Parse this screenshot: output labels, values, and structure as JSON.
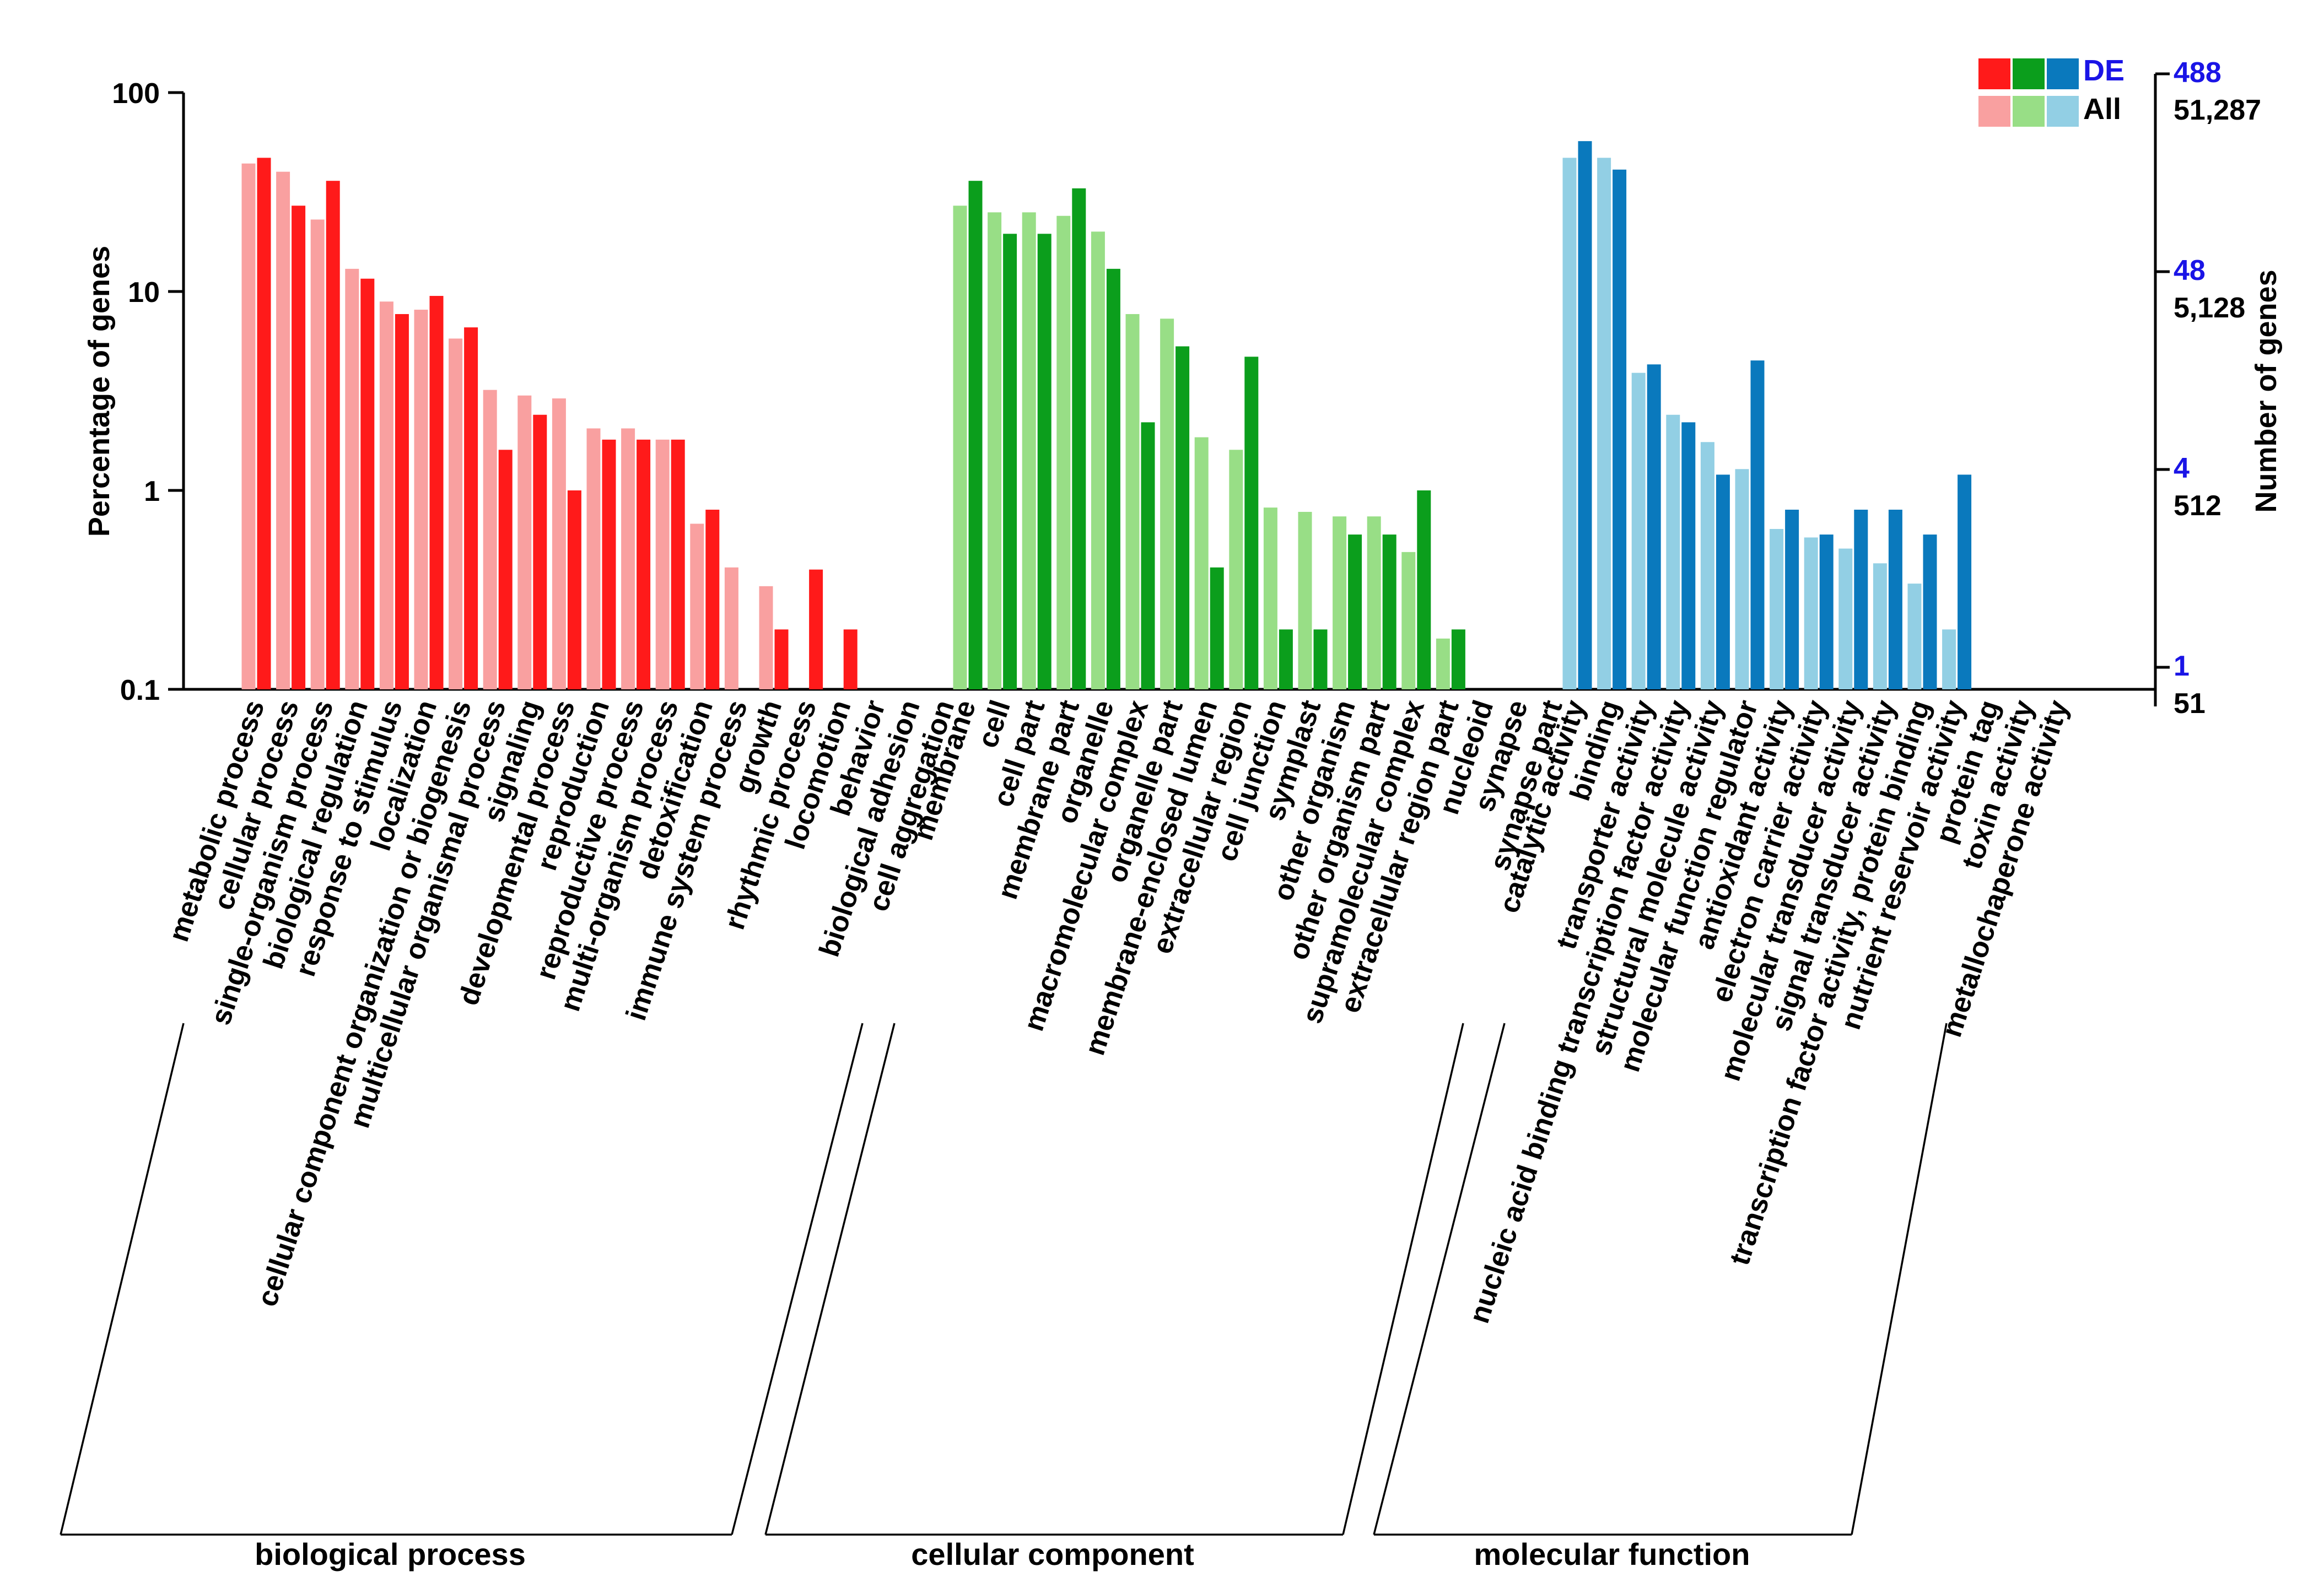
{
  "chart_data": {
    "type": "bar",
    "title": "",
    "ylabel": "Percentage of genes",
    "y2label": "Number of genes",
    "yscale": "log",
    "ylim": [
      0.1,
      100
    ],
    "yticks": [
      "100",
      "10",
      "1",
      "0.1"
    ],
    "right_axis": {
      "de_ticks": [
        "488",
        "48",
        "4",
        "1"
      ],
      "all_ticks": [
        "51,287",
        "5,128",
        "512",
        "51"
      ]
    },
    "legend": {
      "position": "top-right",
      "de_label": "DE",
      "all_label": "All"
    },
    "series": [
      {
        "name": "All"
      },
      {
        "name": "DE"
      }
    ],
    "groups": [
      {
        "name": "biological process",
        "de_color": "#ff1a1a",
        "all_color": "#f9a0a0",
        "categories": [
          {
            "label": "metabolic process",
            "all": 44,
            "de": 47
          },
          {
            "label": "cellular process",
            "all": 40,
            "de": 27
          },
          {
            "label": "single-organism process",
            "all": 23,
            "de": 36
          },
          {
            "label": "biological regulation",
            "all": 13,
            "de": 11.6
          },
          {
            "label": "response to stimulus",
            "all": 8.9,
            "de": 7.7
          },
          {
            "label": "localization",
            "all": 8.1,
            "de": 9.5
          },
          {
            "label": "cellular component organization or biogenesis",
            "all": 5.8,
            "de": 6.6
          },
          {
            "label": "multicellular organismal process",
            "all": 3.2,
            "de": 1.6
          },
          {
            "label": "signaling",
            "all": 3.0,
            "de": 2.4
          },
          {
            "label": "developmental process",
            "all": 2.9,
            "de": 1.0
          },
          {
            "label": "reproduction",
            "all": 2.05,
            "de": 1.8
          },
          {
            "label": "reproductive process",
            "all": 2.05,
            "de": 1.8
          },
          {
            "label": "multi-organism process",
            "all": 1.8,
            "de": 1.8
          },
          {
            "label": "detoxification",
            "all": 0.68,
            "de": 0.8
          },
          {
            "label": "immune system process",
            "all": 0.41,
            "de": null
          },
          {
            "label": "growth",
            "all": 0.33,
            "de": 0.2
          },
          {
            "label": "rhythmic process",
            "all": null,
            "de": 0.4
          },
          {
            "label": "locomotion",
            "all": null,
            "de": 0.2
          },
          {
            "label": "behavior",
            "all": null,
            "de": null
          },
          {
            "label": "biological adhesion",
            "all": null,
            "de": null
          },
          {
            "label": "cell aggregation",
            "all": null,
            "de": null
          }
        ]
      },
      {
        "name": "cellular component",
        "de_color": "#0b9e1c",
        "all_color": "#98de86",
        "categories": [
          {
            "label": "membrane",
            "all": 27,
            "de": 36
          },
          {
            "label": "cell",
            "all": 25,
            "de": 19.5
          },
          {
            "label": "cell part",
            "all": 25,
            "de": 19.5
          },
          {
            "label": "membrane part",
            "all": 24,
            "de": 33
          },
          {
            "label": "organelle",
            "all": 20,
            "de": 13
          },
          {
            "label": "macromolecular complex",
            "all": 7.7,
            "de": 2.2
          },
          {
            "label": "organelle part",
            "all": 7.3,
            "de": 5.3
          },
          {
            "label": "membrane-enclosed lumen",
            "all": 1.85,
            "de": 0.41
          },
          {
            "label": "extracellular region",
            "all": 1.6,
            "de": 4.7
          },
          {
            "label": "cell junction",
            "all": 0.82,
            "de": 0.2
          },
          {
            "label": "symplast",
            "all": 0.78,
            "de": 0.2
          },
          {
            "label": "other organism",
            "all": 0.74,
            "de": 0.6
          },
          {
            "label": "other organism part",
            "all": 0.74,
            "de": 0.6
          },
          {
            "label": "supramolecular complex",
            "all": 0.49,
            "de": 1.0
          },
          {
            "label": "extracellular region part",
            "all": 0.18,
            "de": 0.2
          },
          {
            "label": "nucleoid",
            "all": null,
            "de": null
          },
          {
            "label": "synapse",
            "all": null,
            "de": null
          },
          {
            "label": "synapse part",
            "all": null,
            "de": null
          }
        ]
      },
      {
        "name": "molecular function",
        "de_color": "#0a79bd",
        "all_color": "#92cfe4",
        "categories": [
          {
            "label": "catalytic activity",
            "all": 47,
            "de": 57
          },
          {
            "label": "binding",
            "all": 47,
            "de": 41
          },
          {
            "label": "transporter activity",
            "all": 3.9,
            "de": 4.3
          },
          {
            "label": "nucleic acid binding transcription factor activity",
            "all": 2.4,
            "de": 2.2
          },
          {
            "label": "structural molecule activity",
            "all": 1.75,
            "de": 1.2
          },
          {
            "label": "molecular function regulator",
            "all": 1.28,
            "de": 4.5
          },
          {
            "label": "antioxidant activity",
            "all": 0.64,
            "de": 0.8
          },
          {
            "label": "electron carrier activity",
            "all": 0.58,
            "de": 0.6
          },
          {
            "label": "molecular transducer activity",
            "all": 0.51,
            "de": 0.8
          },
          {
            "label": "signal transducer activity",
            "all": 0.43,
            "de": 0.8
          },
          {
            "label": "transcription factor activity, protein binding",
            "all": 0.34,
            "de": 0.6
          },
          {
            "label": "nutrient reservoir activity",
            "all": 0.2,
            "de": 1.2
          },
          {
            "label": "protein tag",
            "all": null,
            "de": null
          },
          {
            "label": "toxin activity",
            "all": null,
            "de": null
          },
          {
            "label": "metallochaperone activity",
            "all": null,
            "de": null
          }
        ]
      }
    ]
  }
}
